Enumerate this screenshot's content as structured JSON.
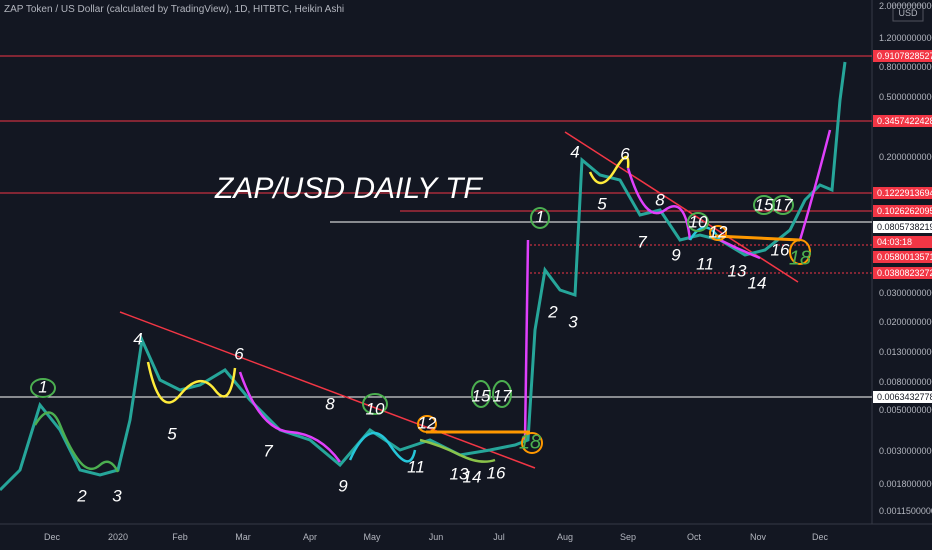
{
  "header": {
    "title": "ZAP Token / US Dollar (calculated by TradingView), 1D, HITBTC, Heikin Ashi",
    "currency": "USD"
  },
  "chart_title": "ZAP/USD DAILY TF",
  "y_axis_labels": [
    "2.0000000000",
    "1.2000000000",
    "0.8000000000",
    "0.5000000000",
    "0.2000000000",
    "0.0300000000",
    "0.0200000000",
    "0.0130000000",
    "0.0080000000",
    "0.0050000000",
    "0.0030000000",
    "0.0018000000",
    "0.0011500000"
  ],
  "price_tags": [
    {
      "label": "0.9107828527",
      "kind": "red"
    },
    {
      "label": "0.3457422428",
      "kind": "red"
    },
    {
      "label": "0.1222913694",
      "kind": "red"
    },
    {
      "label": "0.1026262095",
      "kind": "red"
    },
    {
      "label": "0.0805738219",
      "kind": "white"
    },
    {
      "label": "04:03:18",
      "kind": "red"
    },
    {
      "label": "0.0580013571",
      "kind": "red"
    },
    {
      "label": "0.0380823272",
      "kind": "red"
    },
    {
      "label": "0.0063432778",
      "kind": "white"
    }
  ],
  "x_axis_labels": [
    "Dec",
    "2020",
    "Feb",
    "Mar",
    "Apr",
    "May",
    "Jun",
    "Jul",
    "Aug",
    "Sep",
    "Oct",
    "Nov",
    "Dec"
  ],
  "annotations": [
    "1",
    "2",
    "3",
    "4",
    "5",
    "6",
    "7",
    "8",
    "9",
    "10",
    "11",
    "12",
    "13",
    "14",
    "15",
    "16",
    "17",
    "18",
    "1",
    "2",
    "3",
    "4",
    "5",
    "6",
    "7",
    "8",
    "9",
    "10",
    "11",
    "12",
    "13",
    "14",
    "15",
    "16",
    "17",
    "18"
  ]
}
